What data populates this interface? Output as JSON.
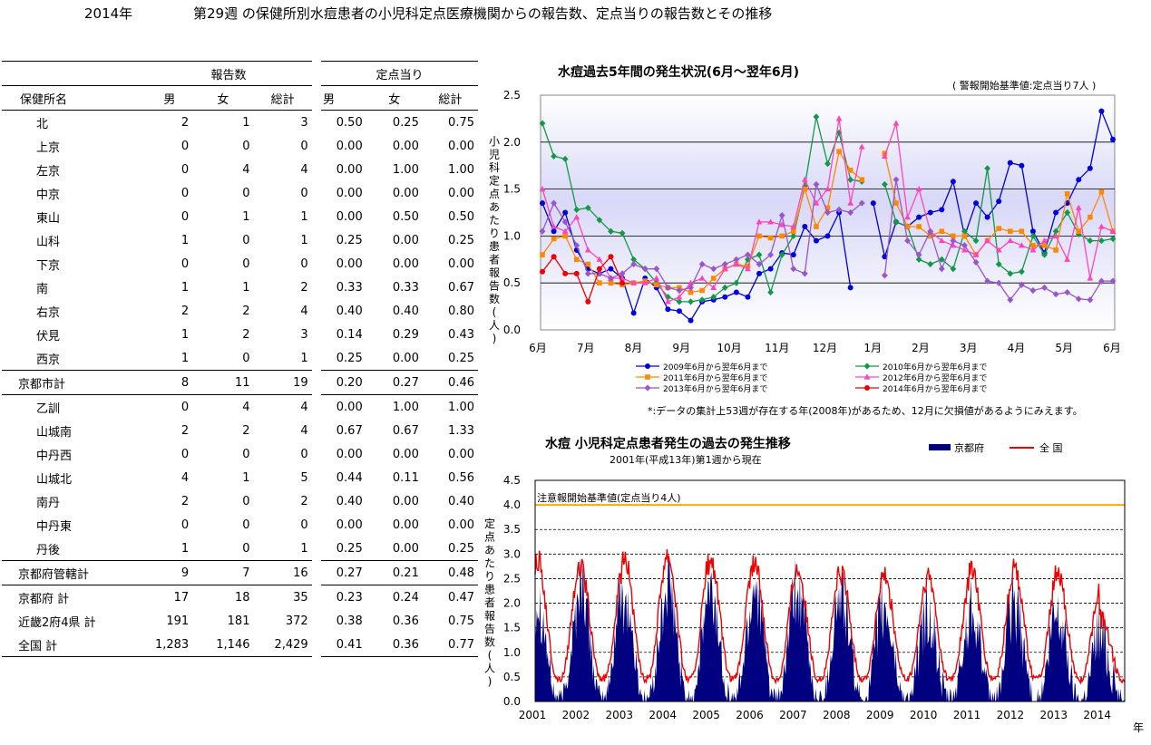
{
  "header": {
    "year": "2014年",
    "week": "第29週",
    "title": "の保健所別水痘患者の小児科定点医療機関からの報告数、定点当りの報告数とその推移"
  },
  "table": {
    "group_reports": "報告数",
    "group_per": "定点当り",
    "col_name": "保健所名",
    "col_male": "男",
    "col_female": "女",
    "col_total": "総計",
    "rows": [
      {
        "name": "北",
        "m": "2",
        "f": "1",
        "t": "3",
        "pm": "0.50",
        "pf": "0.25",
        "pt": "0.75",
        "kind": "pref"
      },
      {
        "name": "上京",
        "m": "0",
        "f": "0",
        "t": "0",
        "pm": "0.00",
        "pf": "0.00",
        "pt": "0.00",
        "kind": "pref"
      },
      {
        "name": "左京",
        "m": "0",
        "f": "4",
        "t": "4",
        "pm": "0.00",
        "pf": "1.00",
        "pt": "1.00",
        "kind": "pref"
      },
      {
        "name": "中京",
        "m": "0",
        "f": "0",
        "t": "0",
        "pm": "0.00",
        "pf": "0.00",
        "pt": "0.00",
        "kind": "pref"
      },
      {
        "name": "東山",
        "m": "0",
        "f": "1",
        "t": "1",
        "pm": "0.00",
        "pf": "0.50",
        "pt": "0.50",
        "kind": "pref"
      },
      {
        "name": "山科",
        "m": "1",
        "f": "0",
        "t": "1",
        "pm": "0.25",
        "pf": "0.00",
        "pt": "0.25",
        "kind": "pref"
      },
      {
        "name": "下京",
        "m": "0",
        "f": "0",
        "t": "0",
        "pm": "0.00",
        "pf": "0.00",
        "pt": "0.00",
        "kind": "pref"
      },
      {
        "name": "南",
        "m": "1",
        "f": "1",
        "t": "2",
        "pm": "0.33",
        "pf": "0.33",
        "pt": "0.67",
        "kind": "pref"
      },
      {
        "name": "右京",
        "m": "2",
        "f": "2",
        "t": "4",
        "pm": "0.40",
        "pf": "0.40",
        "pt": "0.80",
        "kind": "pref"
      },
      {
        "name": "伏見",
        "m": "1",
        "f": "2",
        "t": "3",
        "pm": "0.14",
        "pf": "0.29",
        "pt": "0.43",
        "kind": "pref"
      },
      {
        "name": "西京",
        "m": "1",
        "f": "0",
        "t": "1",
        "pm": "0.25",
        "pf": "0.00",
        "pt": "0.25",
        "kind": "pref"
      },
      {
        "name": "京都市計",
        "m": "8",
        "f": "11",
        "t": "19",
        "pm": "0.20",
        "pf": "0.27",
        "pt": "0.46",
        "kind": "tot"
      },
      {
        "name": "乙訓",
        "m": "0",
        "f": "4",
        "t": "4",
        "pm": "0.00",
        "pf": "1.00",
        "pt": "1.00",
        "kind": "pref"
      },
      {
        "name": "山城南",
        "m": "2",
        "f": "2",
        "t": "4",
        "pm": "0.67",
        "pf": "0.67",
        "pt": "1.33",
        "kind": "pref"
      },
      {
        "name": "中丹西",
        "m": "0",
        "f": "0",
        "t": "0",
        "pm": "0.00",
        "pf": "0.00",
        "pt": "0.00",
        "kind": "pref"
      },
      {
        "name": "山城北",
        "m": "4",
        "f": "1",
        "t": "5",
        "pm": "0.44",
        "pf": "0.11",
        "pt": "0.56",
        "kind": "pref"
      },
      {
        "name": "南丹",
        "m": "2",
        "f": "0",
        "t": "2",
        "pm": "0.40",
        "pf": "0.00",
        "pt": "0.40",
        "kind": "pref"
      },
      {
        "name": "中丹東",
        "m": "0",
        "f": "0",
        "t": "0",
        "pm": "0.00",
        "pf": "0.00",
        "pt": "0.00",
        "kind": "pref"
      },
      {
        "name": "丹後",
        "m": "1",
        "f": "0",
        "t": "1",
        "pm": "0.25",
        "pf": "0.00",
        "pt": "0.25",
        "kind": "pref"
      },
      {
        "name": "京都府管轄計",
        "m": "9",
        "f": "7",
        "t": "16",
        "pm": "0.27",
        "pf": "0.21",
        "pt": "0.48",
        "kind": "tot"
      },
      {
        "name": "京都府 計",
        "m": "17",
        "f": "18",
        "t": "35",
        "pm": "0.23",
        "pf": "0.24",
        "pt": "0.47",
        "kind": "tot2"
      },
      {
        "name": "近畿2府4県 計",
        "m": "191",
        "f": "181",
        "t": "372",
        "pm": "0.38",
        "pf": "0.36",
        "pt": "0.75",
        "kind": "tot2"
      },
      {
        "name": "全国 計",
        "m": "1,283",
        "f": "1,146",
        "t": "2,429",
        "pm": "0.41",
        "pf": "0.36",
        "pt": "0.77",
        "kind": "last"
      }
    ]
  },
  "chart_data": [
    {
      "type": "line",
      "title": "水痘過去5年間の発生状況(6月～翌年6月)",
      "note_top": "( 警報開始基準値:定点当り7人 )",
      "ylabel": "小児科定点あたり患者報告数(人)",
      "ylim": [
        0,
        2.5
      ],
      "yticks": [
        "0.0",
        "0.5",
        "1.0",
        "1.5",
        "2.0",
        "2.5"
      ],
      "months": [
        "6月",
        "7月",
        "8月",
        "9月",
        "10月",
        "11月",
        "12月",
        "1月",
        "2月",
        "3月",
        "4月",
        "5月",
        "6月"
      ],
      "footnote": "*:データの集計上53週が存在する年(2008年)があるため、12月に欠損値があるようにみえます。",
      "legend": [
        "2009年6月から翌年6月まで",
        "2010年6月から翌年6月まで",
        "2011年6月から翌年6月まで",
        "2012年6月から翌年6月まで",
        "2013年6月から翌年6月まで",
        "2014年6月から翌年6月まで"
      ],
      "series": [
        {
          "name": "2009年6月から翌年6月まで",
          "color": "#0000dd",
          "marker": "circle",
          "values": [
            1.35,
            1.05,
            1.25,
            0.85,
            0.65,
            0.6,
            0.65,
            0.55,
            0.18,
            0.55,
            0.45,
            0.22,
            0.2,
            0.1,
            0.3,
            0.32,
            0.35,
            0.4,
            0.35,
            0.6,
            0.65,
            0.82,
            0.8,
            1.1,
            0.95,
            1.0,
            1.25,
            0.45,
            null,
            1.35,
            0.78,
            1.15,
            1.1,
            1.2,
            1.25,
            1.28,
            1.58,
            1.0,
            1.35,
            1.2,
            1.37,
            1.78,
            1.75,
            1.05,
            0.82,
            1.25,
            1.35,
            1.6,
            1.72,
            2.33,
            2.03
          ]
        },
        {
          "name": "2010年6月から翌年6月まで",
          "color": "#119944",
          "marker": "diamond",
          "values": [
            2.2,
            1.85,
            1.82,
            1.28,
            1.3,
            1.17,
            1.05,
            1.03,
            0.75,
            0.65,
            0.5,
            0.35,
            0.3,
            0.3,
            0.32,
            0.35,
            0.45,
            0.5,
            0.75,
            0.8,
            0.4,
            0.8,
            1.0,
            1.53,
            2.27,
            1.77,
            2.1,
            1.6,
            1.58,
            null,
            1.55,
            1.15,
            1.1,
            0.75,
            0.7,
            0.75,
            0.65,
            1.05,
            0.95,
            1.72,
            0.7,
            0.6,
            0.62,
            1.0,
            0.8,
            1.05,
            1.25,
            1.02,
            0.95,
            0.95,
            0.97
          ]
        },
        {
          "name": "2011年6月から翌年6月まで",
          "color": "#ff8800",
          "marker": "square",
          "values": [
            0.8,
            0.97,
            1.0,
            0.75,
            0.7,
            0.5,
            0.5,
            0.48,
            0.5,
            0.52,
            0.48,
            0.45,
            0.45,
            0.4,
            0.42,
            0.55,
            0.65,
            0.7,
            0.68,
            1.0,
            0.98,
            1.0,
            1.05,
            1.5,
            1.1,
            1.3,
            1.9,
            1.7,
            1.6,
            null,
            1.88,
            1.35,
            1.1,
            1.1,
            1.0,
            1.05,
            1.0,
            1.0,
            0.8,
            0.95,
            1.08,
            1.05,
            1.05,
            0.9,
            0.9,
            0.85,
            1.45,
            1.05,
            1.2,
            1.47,
            1.05
          ]
        },
        {
          "name": "2012年6月から翌年6月まで",
          "color": "#ff44bb",
          "marker": "triangle",
          "values": [
            1.5,
            1.1,
            1.05,
            1.2,
            0.85,
            0.75,
            0.55,
            0.55,
            0.5,
            0.5,
            0.55,
            0.3,
            0.35,
            0.5,
            0.55,
            0.45,
            0.65,
            0.7,
            0.65,
            1.15,
            1.15,
            1.12,
            1.1,
            1.6,
            1.35,
            1.5,
            2.25,
            1.35,
            1.95,
            null,
            1.85,
            2.2,
            1.2,
            1.5,
            1.05,
            0.95,
            0.9,
            0.85,
            0.8,
            0.95,
            0.85,
            0.95,
            0.9,
            0.85,
            0.95,
            1.0,
            0.75,
            1.3,
            0.55,
            1.1,
            1.05
          ]
        },
        {
          "name": "2013年6月から翌年6月まで",
          "color": "#9955cc",
          "marker": "diamond",
          "values": [
            1.05,
            1.35,
            1.15,
            0.9,
            0.6,
            0.6,
            0.55,
            0.6,
            0.7,
            0.65,
            0.65,
            0.45,
            0.42,
            0.45,
            0.7,
            0.65,
            0.7,
            0.75,
            0.8,
            0.7,
            0.8,
            1.22,
            0.65,
            0.6,
            1.55,
            1.25,
            1.28,
            1.25,
            1.35,
            null,
            0.58,
            1.6,
            0.95,
            0.8,
            1.05,
            0.65,
            0.95,
            0.9,
            0.72,
            0.52,
            0.5,
            0.32,
            0.48,
            0.42,
            0.45,
            0.38,
            0.4,
            0.33,
            0.32,
            0.52,
            0.52
          ]
        },
        {
          "name": "2014年6月から翌年6月まで",
          "color": "#ee0000",
          "marker": "circle",
          "values": [
            0.62,
            0.78,
            0.6,
            0.6,
            0.3,
            0.65,
            0.78,
            0.5
          ]
        }
      ]
    },
    {
      "type": "area",
      "title": "水痘 小児科定点患者発生の過去の発生推移",
      "subtitle": "2001年(平成13年)第1週から現在",
      "ylabel": "定点あたり患者報告数(人)",
      "xlabel": "年",
      "ylim": [
        0,
        4.5
      ],
      "yticks": [
        "0.0",
        "0.5",
        "1.0",
        "1.5",
        "2.0",
        "2.5",
        "3.0",
        "3.5",
        "4.0",
        "4.5"
      ],
      "years": [
        "2001",
        "2002",
        "2003",
        "2004",
        "2005",
        "2006",
        "2007",
        "2008",
        "2009",
        "2010",
        "2011",
        "2012",
        "2013",
        "2014"
      ],
      "threshold": 4.0,
      "threshold_label": "注意報開始基準値(定点当り4人)",
      "legend_kyoto": "京都府",
      "legend_national": "全 国",
      "color_kyoto": "#000080",
      "color_national": "#ee0000",
      "peaks_kyoto": [
        2.1,
        2.4,
        2.1,
        2.3,
        2.1,
        2.4,
        2.2,
        2.1,
        1.8,
        1.7,
        2.0,
        1.9,
        1.7,
        1.3
      ],
      "peaks_national": [
        2.9,
        2.7,
        3.0,
        3.0,
        2.8,
        2.8,
        2.7,
        2.6,
        2.5,
        2.5,
        2.7,
        2.7,
        2.5,
        1.7
      ]
    }
  ]
}
